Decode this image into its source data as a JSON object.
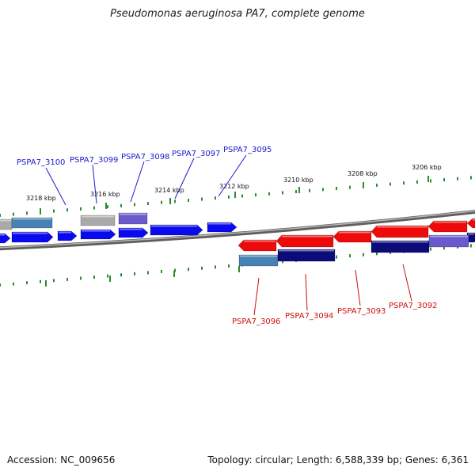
{
  "title": "Pseudomonas aeruginosa PA7, complete genome",
  "footer": {
    "accession": "Accession: NC_009656",
    "topology": "Topology: circular; Length: 6,588,339 bp; Genes: 6,361"
  },
  "colors": {
    "forward_gene": "#0a0aee",
    "forward_label": "#1a1acc",
    "reverse_gene": "#ee0a0a",
    "reverse_label": "#cc1111",
    "backbone": "#7a7a7a",
    "ticks": "#2e8b2e",
    "cds_grey": "#a9a9a9",
    "cds_steel": "#4682b4",
    "cds_purple": "#6a5acd",
    "cds_navy": "#0b0b7a"
  },
  "scale_ticks": [
    "3218 kbp",
    "3216 kbp",
    "3214 kbp",
    "3212 kbp",
    "3210 kbp",
    "3208 kbp",
    "3206 kbp"
  ],
  "forward_genes": [
    "PSPA7_3100",
    "PSPA7_3099",
    "PSPA7_3098",
    "PSPA7_3097",
    "PSPA7_3095"
  ],
  "reverse_genes": [
    "PSPA7_3096",
    "PSPA7_3094",
    "PSPA7_3093",
    "PSPA7_3092"
  ]
}
